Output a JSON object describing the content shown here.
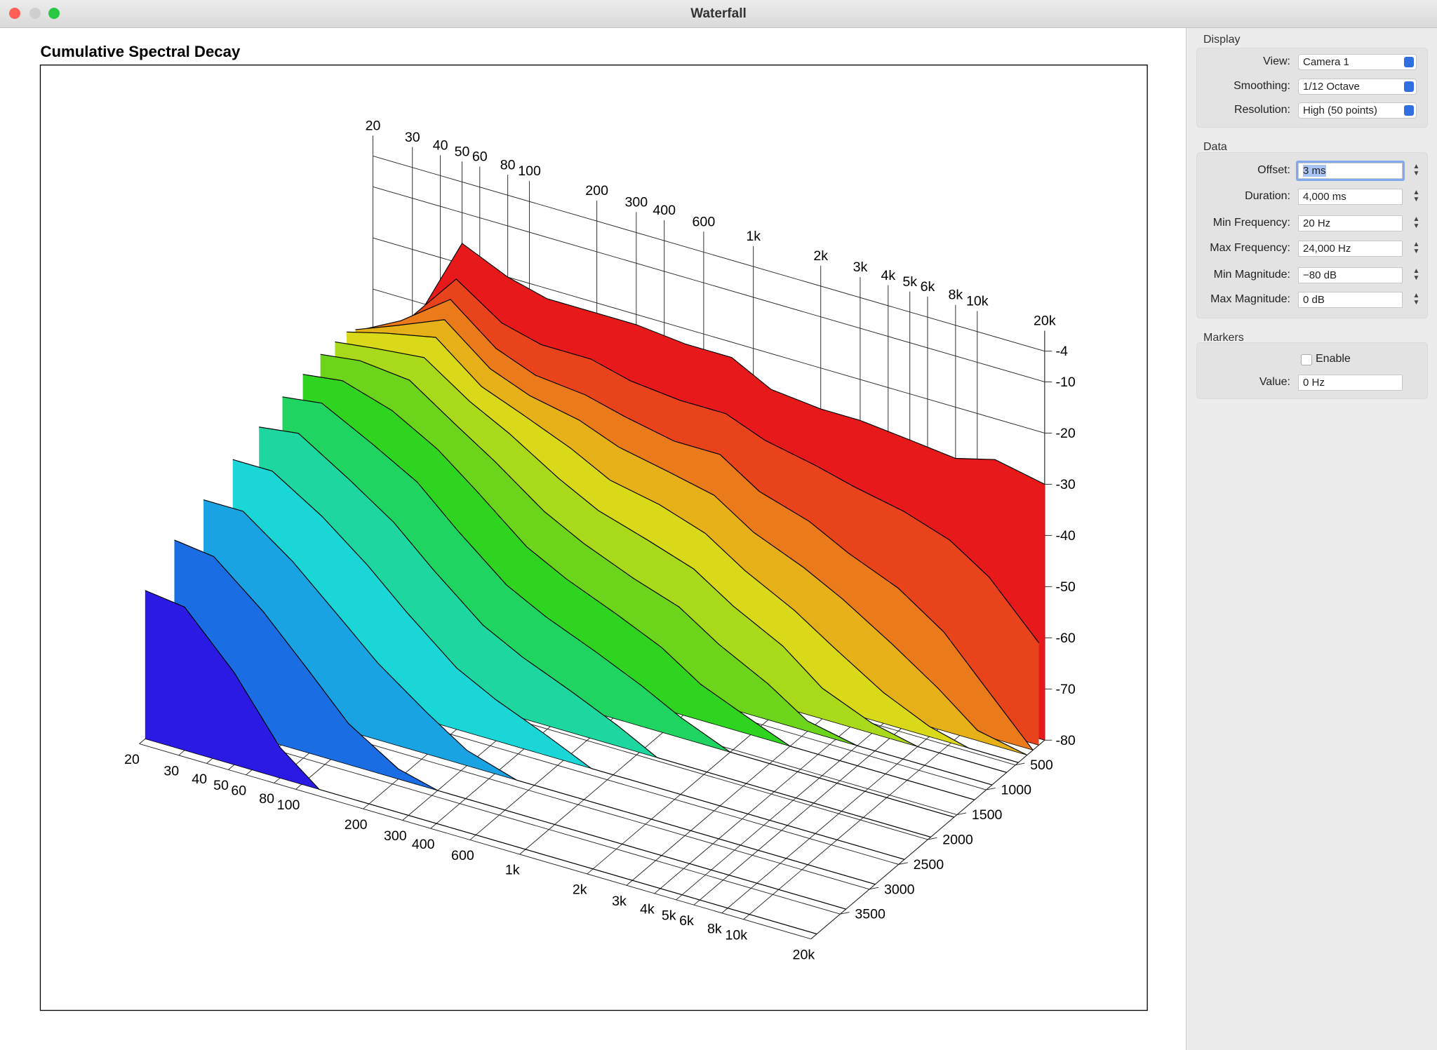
{
  "window": {
    "title": "Waterfall"
  },
  "chart_data": {
    "type": "waterfall",
    "title": "Cumulative Spectral Decay",
    "xlim": [
      20,
      20000
    ],
    "log_x": true,
    "xticks": [
      20,
      30,
      40,
      50,
      60,
      80,
      100,
      200,
      300,
      400,
      600,
      {
        "value": 1000,
        "label": "1k"
      },
      {
        "value": 2000,
        "label": "2k"
      },
      {
        "value": 3000,
        "label": "3k"
      },
      {
        "value": 4000,
        "label": "4k"
      },
      {
        "value": 5000,
        "label": "5k"
      },
      {
        "value": 6000,
        "label": "6k"
      },
      {
        "value": 8000,
        "label": "8k"
      },
      {
        "value": 10000,
        "label": "10k"
      },
      {
        "value": 20000,
        "label": "20k"
      }
    ],
    "ylim": [
      -80,
      0
    ],
    "yticks": [
      -4,
      -10,
      -20,
      -30,
      -40,
      -50,
      -60,
      -70,
      -80
    ],
    "zlim": [
      0,
      4000
    ],
    "zticks": [
      500,
      1000,
      1500,
      2000,
      2500,
      3000,
      3500
    ],
    "x": [
      20,
      30,
      50,
      80,
      120,
      200,
      300,
      500,
      800,
      1200,
      2000,
      3000,
      5000,
      8000,
      12000,
      20000
    ],
    "z": [
      0,
      100,
      200,
      300,
      450,
      650,
      900,
      1200,
      1550,
      1950,
      2400,
      2900,
      3400,
      3900
    ],
    "series": [
      {
        "color": "#e8191b",
        "values": [
          -40,
          -35,
          -16,
          -20,
          -22,
          -22,
          -22,
          -23,
          -23,
          -27,
          -28,
          -28,
          -29,
          -30,
          -28,
          -30
        ]
      },
      {
        "color": "#e8431b",
        "values": [
          -38,
          -33,
          -22,
          -28,
          -30,
          -30,
          -32,
          -33,
          -33,
          -36,
          -38,
          -40,
          -42,
          -45,
          -50,
          -60
        ]
      },
      {
        "color": "#ea7a1a",
        "values": [
          -36,
          -32,
          -25,
          -32,
          -35,
          -36,
          -38,
          -40,
          -40,
          -45,
          -48,
          -52,
          -56,
          -62,
          -70,
          -80
        ]
      },
      {
        "color": "#e6b018",
        "values": [
          -35,
          -32,
          -28,
          -35,
          -38,
          -40,
          -43,
          -45,
          -47,
          -52,
          -56,
          -60,
          -66,
          -72,
          -78,
          -80
        ]
      },
      {
        "color": "#d9d91a",
        "values": [
          -34,
          -32,
          -30,
          -37,
          -40,
          -44,
          -48,
          -50,
          -53,
          -58,
          -63,
          -68,
          -74,
          -78,
          -80,
          -80
        ]
      },
      {
        "color": "#a8d91a",
        "values": [
          -34,
          -33,
          -32,
          -38,
          -42,
          -48,
          -52,
          -55,
          -58,
          -63,
          -68,
          -74,
          -78,
          -80,
          -80,
          -80
        ]
      },
      {
        "color": "#6dd41c",
        "values": [
          -34,
          -33,
          -34,
          -40,
          -45,
          -52,
          -56,
          -60,
          -63,
          -68,
          -73,
          -78,
          -80,
          -80,
          -80,
          -80
        ]
      },
      {
        "color": "#2ed41f",
        "values": [
          -35,
          -34,
          -37,
          -42,
          -48,
          -56,
          -60,
          -64,
          -68,
          -73,
          -77,
          -80,
          -80,
          -80,
          -80,
          -80
        ]
      },
      {
        "color": "#1fd460",
        "values": [
          -36,
          -35,
          -40,
          -45,
          -52,
          -60,
          -64,
          -68,
          -72,
          -76,
          -80,
          -80,
          -80,
          -80,
          -80,
          -80
        ]
      },
      {
        "color": "#1dd6a0",
        "values": [
          -38,
          -37,
          -43,
          -49,
          -56,
          -64,
          -68,
          -72,
          -76,
          -80,
          -80,
          -80,
          -80,
          -80,
          -80,
          -80
        ]
      },
      {
        "color": "#1ad6d6",
        "values": [
          -40,
          -40,
          -46,
          -53,
          -60,
          -68,
          -72,
          -76,
          -80,
          -80,
          -80,
          -80,
          -80,
          -80,
          -80,
          -80
        ]
      },
      {
        "color": "#1aa3e3",
        "values": [
          -43,
          -43,
          -50,
          -58,
          -65,
          -72,
          -77,
          -80,
          -80,
          -80,
          -80,
          -80,
          -80,
          -80,
          -80,
          -80
        ]
      },
      {
        "color": "#1a6de3",
        "values": [
          -46,
          -47,
          -55,
          -64,
          -72,
          -78,
          -80,
          -80,
          -80,
          -80,
          -80,
          -80,
          -80,
          -80,
          -80,
          -80
        ]
      },
      {
        "color": "#2a1ae3",
        "values": [
          -51,
          -52,
          -62,
          -74,
          -80,
          -80,
          -80,
          -80,
          -80,
          -80,
          -80,
          -80,
          -80,
          -80,
          -80,
          -80
        ]
      }
    ]
  },
  "sidebar": {
    "display": {
      "heading": "Display",
      "rows": [
        {
          "label": "View:",
          "value": "Camera 1"
        },
        {
          "label": "Smoothing:",
          "value": "1/12 Octave"
        },
        {
          "label": "Resolution:",
          "value": "High (50 points)"
        }
      ]
    },
    "data": {
      "heading": "Data",
      "rows": [
        {
          "label": "Offset:",
          "value": "3 ms"
        },
        {
          "label": "Duration:",
          "value": "4,000 ms"
        },
        {
          "label": "Min Frequency:",
          "value": "20 Hz"
        },
        {
          "label": "Max Frequency:",
          "value": "24,000 Hz"
        },
        {
          "label": "Min Magnitude:",
          "value": "−80 dB"
        },
        {
          "label": "Max Magnitude:",
          "value": "0 dB"
        }
      ]
    },
    "markers": {
      "heading": "Markers",
      "enable": "Enable",
      "rows": [
        {
          "label": "Value:",
          "value": "0 Hz"
        }
      ]
    }
  }
}
